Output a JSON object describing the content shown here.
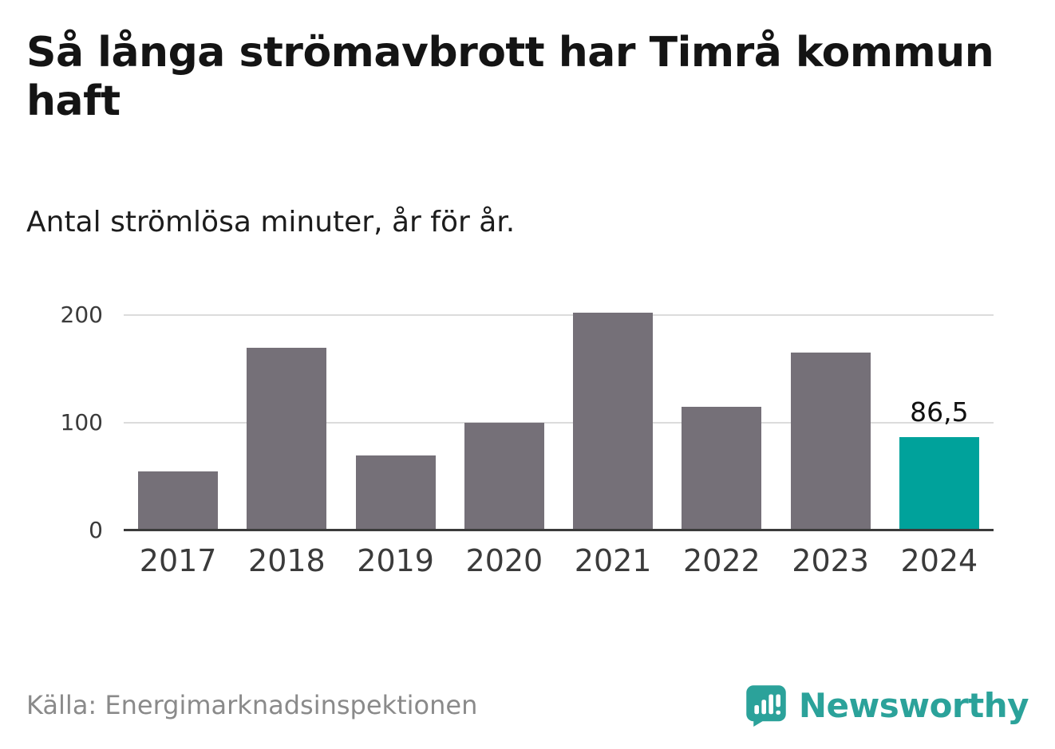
{
  "header": {
    "title": "Så långa strömavbrott har Timrå kommun haft",
    "subtitle": "Antal strömlösa minuter, år för år."
  },
  "chart_data": {
    "type": "bar",
    "title": "Så långa strömavbrott har Timrå kommun haft",
    "subtitle": "Antal strömlösa minuter, år för år.",
    "categories": [
      "2017",
      "2018",
      "2019",
      "2020",
      "2021",
      "2022",
      "2023",
      "2024"
    ],
    "values": [
      55,
      170,
      70,
      100,
      202,
      115,
      165,
      86.5
    ],
    "xlabel": "",
    "ylabel": "",
    "ylim": [
      0,
      200
    ],
    "y_ticks": [
      0,
      100,
      200
    ],
    "grid": "horizontal",
    "legend": "none",
    "bar_color": "#757078",
    "highlight_index": 7,
    "highlight_color": "#00A29B",
    "annotations": [
      {
        "index": 7,
        "text": "86,5"
      }
    ]
  },
  "footer": {
    "source": "Källa: Energimarknadsinspektionen",
    "brand": "Newsworthy",
    "brand_color": "#2BA29A"
  }
}
